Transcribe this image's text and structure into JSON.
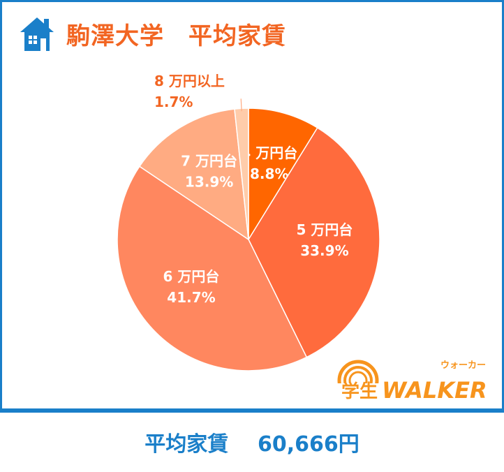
{
  "header": {
    "title": "駒澤大学　平均家賃",
    "icon": "house-icon"
  },
  "colors": {
    "frame": "#1a7fc9",
    "title": "#f26522",
    "footer_text": "#1a7fc9",
    "slices": [
      "#ff6600",
      "#ff6b3d",
      "#ff875f",
      "#ffab82",
      "#ffccaa"
    ]
  },
  "chart_data": {
    "type": "pie",
    "title": "駒澤大学　平均家賃",
    "start_angle_deg": 0,
    "direction": "clockwise",
    "slices": [
      {
        "label": "4 万円台",
        "value": 8.8,
        "value_label": "8.8%",
        "color": "#ff6600",
        "label_position": "inside"
      },
      {
        "label": "5 万円台",
        "value": 33.9,
        "value_label": "33.9%",
        "color": "#ff6b3d",
        "label_position": "inside"
      },
      {
        "label": "6 万円台",
        "value": 41.7,
        "value_label": "41.7%",
        "color": "#ff875f",
        "label_position": "inside"
      },
      {
        "label": "7 万円台",
        "value": 13.9,
        "value_label": "13.9%",
        "color": "#ffab82",
        "label_position": "inside"
      },
      {
        "label": "8 万円以上",
        "value": 1.7,
        "value_label": "1.7%",
        "color": "#ffccaa",
        "label_position": "outside"
      }
    ],
    "legend": "none"
  },
  "footer": {
    "label": "平均家賃",
    "value": "60,666円"
  },
  "logo": {
    "kanji": "学生",
    "brand": "WALKER",
    "ruby": "ウォーカー"
  }
}
